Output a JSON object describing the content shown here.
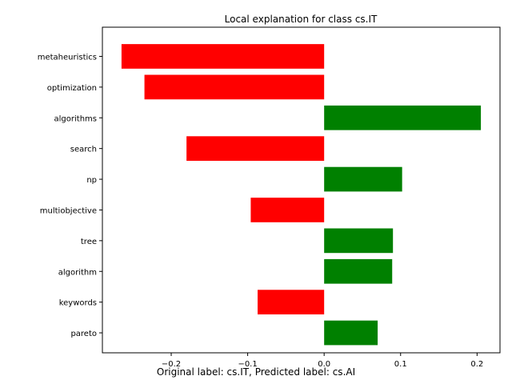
{
  "chart_data": {
    "type": "bar",
    "orientation": "horizontal",
    "title": "Local explanation for class cs.IT",
    "categories": [
      "metaheuristics",
      "optimization",
      "algorithms",
      "search",
      "np",
      "multiobjective",
      "tree",
      "algorithm",
      "keywords",
      "pareto"
    ],
    "values": [
      -0.265,
      -0.235,
      0.205,
      -0.18,
      0.102,
      -0.096,
      0.09,
      0.089,
      -0.087,
      0.07
    ],
    "xlim": [
      -0.29,
      0.23
    ],
    "xticks": [
      -0.2,
      -0.1,
      0.0,
      0.1,
      0.2
    ],
    "xtick_labels": [
      "−0.2",
      "−0.1",
      "0.0",
      "0.1",
      "0.2"
    ],
    "colors": {
      "positive": "#008000",
      "negative": "#ff0000"
    },
    "grid": false,
    "xlabel": "",
    "ylabel": ""
  },
  "caption": "Original label: cs.IT, Predicted label: cs.AI"
}
